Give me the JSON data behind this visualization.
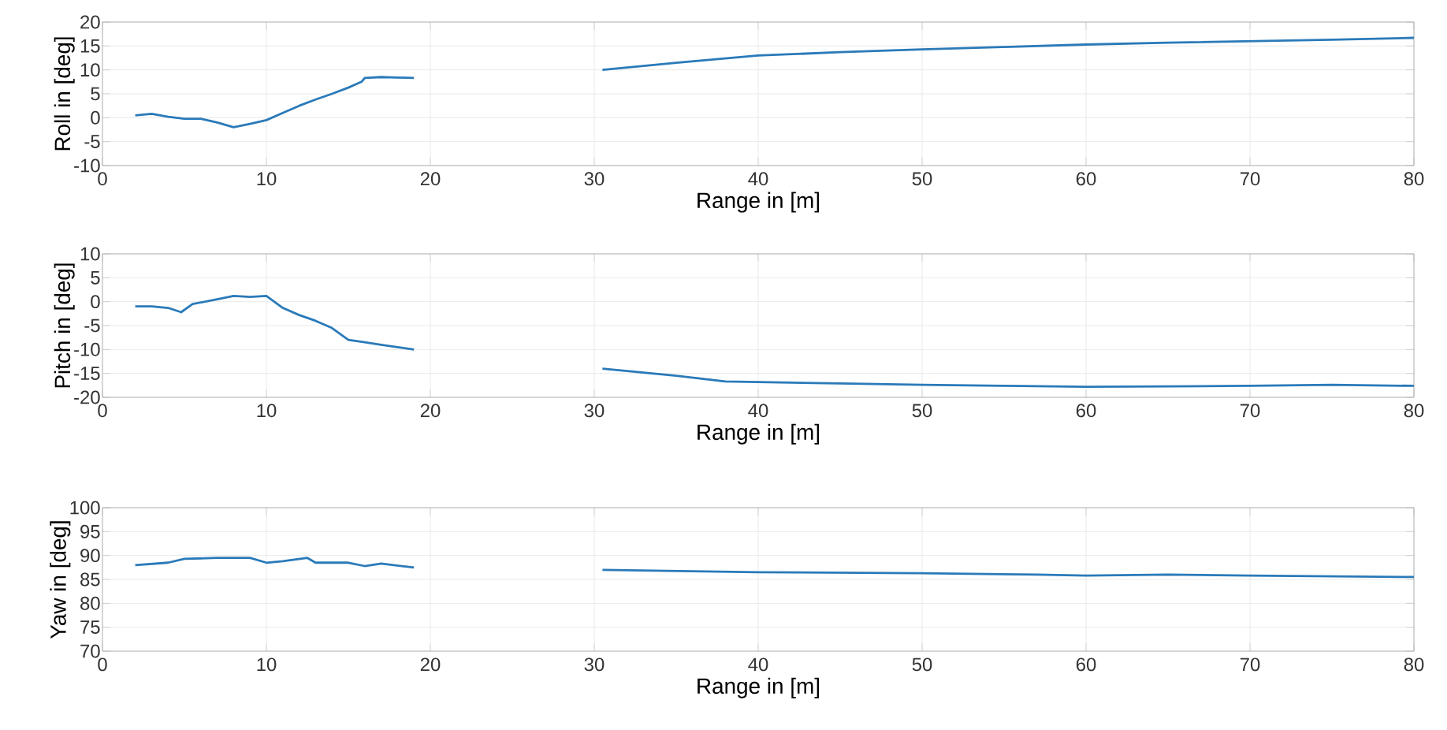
{
  "chart_data": [
    {
      "type": "line",
      "xlabel": "Range in [m]",
      "ylabel": "Roll in [deg]",
      "color": "#2a7ab9",
      "grid": true,
      "x": [
        2,
        3,
        4,
        5,
        6,
        7,
        8,
        9,
        10,
        11,
        12,
        13,
        14,
        15,
        15.8,
        16,
        17,
        18,
        19,
        25,
        30.5,
        35,
        40,
        45,
        50,
        55,
        60,
        65,
        70,
        75,
        80
      ],
      "values": [
        0.5,
        0.8,
        0.2,
        -0.2,
        -0.2,
        -1,
        -2,
        -1.3,
        -0.5,
        1,
        2.5,
        3.8,
        5,
        6.3,
        7.5,
        8.3,
        8.5,
        8.4,
        8.3,
        null,
        10,
        11.5,
        13,
        13.7,
        14.3,
        14.8,
        15.3,
        15.7,
        16,
        16.3,
        16.7
      ],
      "xlim": [
        0,
        80
      ],
      "ylim": [
        -10,
        20
      ],
      "xticks": [
        0,
        10,
        20,
        30,
        40,
        50,
        60,
        70,
        80
      ],
      "yticks": [
        -10,
        -5,
        0,
        5,
        10,
        15,
        20
      ]
    },
    {
      "type": "line",
      "xlabel": "Range in [m]",
      "ylabel": "Pitch in [deg]",
      "color": "#2a7ab9",
      "grid": true,
      "x": [
        2,
        3,
        4,
        4.8,
        5.5,
        7,
        8,
        9,
        10,
        11,
        12,
        13,
        14,
        15,
        16,
        17,
        18,
        19,
        25,
        30.5,
        35,
        38,
        40,
        45,
        50,
        55,
        60,
        65,
        70,
        75,
        80
      ],
      "values": [
        -1,
        -1,
        -1.3,
        -2.2,
        -0.5,
        0.5,
        1.2,
        1,
        1.2,
        -1.3,
        -2.8,
        -4,
        -5.5,
        -8,
        -8.5,
        -9,
        -9.5,
        -10,
        null,
        -14,
        -15.5,
        -16.7,
        -16.8,
        -17.1,
        -17.4,
        -17.6,
        -17.8,
        -17.7,
        -17.6,
        -17.4,
        -17.6
      ],
      "xlim": [
        0,
        80
      ],
      "ylim": [
        -20,
        10
      ],
      "xticks": [
        0,
        10,
        20,
        30,
        40,
        50,
        60,
        70,
        80
      ],
      "yticks": [
        -20,
        -15,
        -10,
        -5,
        0,
        5,
        10
      ]
    },
    {
      "type": "line",
      "xlabel": "Range in [m]",
      "ylabel": "Yaw in [deg]",
      "color": "#2a7ab9",
      "grid": true,
      "x": [
        2,
        4,
        5,
        7,
        9,
        10,
        11,
        12.5,
        13,
        15,
        16,
        17,
        19,
        25,
        30.5,
        40,
        50,
        57,
        60,
        65,
        70,
        80
      ],
      "values": [
        88,
        88.5,
        89.3,
        89.5,
        89.5,
        88.5,
        88.8,
        89.5,
        88.5,
        88.5,
        87.8,
        88.3,
        87.5,
        null,
        87,
        86.5,
        86.3,
        86,
        85.8,
        86,
        85.8,
        85.5
      ],
      "xlim": [
        0,
        80
      ],
      "ylim": [
        70,
        100
      ],
      "xticks": [
        0,
        10,
        20,
        30,
        40,
        50,
        60,
        70,
        80
      ],
      "yticks": [
        70,
        75,
        80,
        85,
        90,
        95,
        100
      ]
    }
  ]
}
